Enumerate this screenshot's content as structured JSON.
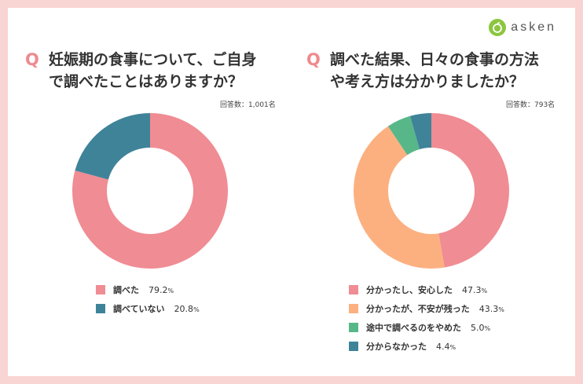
{
  "brand": {
    "name": "asken",
    "logo_color": "#8cc63e"
  },
  "q_mark": "Q",
  "chart_data": [
    {
      "type": "pie",
      "title_lines": [
        "妊娠期の食事について、ご自身",
        "で調べたことはありますか？"
      ],
      "respondents_label": "回答数：1,001名",
      "labels": [
        "調べた",
        "調べていない"
      ],
      "values": [
        79.2,
        20.8
      ],
      "display": [
        "79.2",
        "20.8"
      ],
      "unit": "%",
      "colors": [
        "#f08c93",
        "#3f8399"
      ]
    },
    {
      "type": "pie",
      "title_lines": [
        "調べた結果、日々の食事の方法",
        "や考え方は分かりましたか？"
      ],
      "respondents_label": "回答数：793名",
      "labels": [
        "分かったし、安心した",
        "分かったが、不安が残った",
        "途中で調べるのをやめた",
        "分からなかった"
      ],
      "values": [
        47.3,
        43.3,
        5.0,
        4.4
      ],
      "display": [
        "47.3",
        "43.3",
        "5.0",
        "4.4"
      ],
      "unit": "%",
      "colors": [
        "#f08c93",
        "#fcb080",
        "#58b788",
        "#3f8399"
      ]
    }
  ]
}
